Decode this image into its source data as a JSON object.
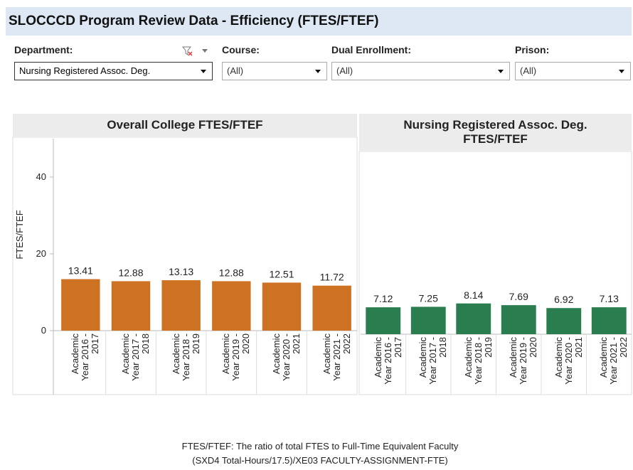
{
  "header": {
    "title": "SLOCCCD Program Review Data - Efficiency (FTES/FTEF)"
  },
  "filters": [
    {
      "label": "Department:",
      "value": "Nursing Registered Assoc. Deg."
    },
    {
      "label": "Course:",
      "value": "(All)"
    },
    {
      "label": "Dual Enrollment:",
      "value": "(All)"
    },
    {
      "label": "Prison:",
      "value": "(All)"
    }
  ],
  "chart_data": [
    {
      "type": "bar",
      "title": "Overall College FTES/FTEF",
      "y_label": "FTES/FTEF",
      "categories": [
        "Academic Year 2016 - 2017",
        "Academic Year 2017 - 2018",
        "Academic Year 2018 - 2019",
        "Academic Year 2019 - 2020",
        "Academic Year 2020 - 2021",
        "Academic Year 2021 - 2022"
      ],
      "values": [
        13.41,
        12.88,
        13.13,
        12.88,
        12.51,
        11.72
      ],
      "color": "#cd7223",
      "ylim": [
        0,
        50
      ],
      "yticks": [
        0,
        20,
        40
      ]
    },
    {
      "type": "bar",
      "title": "Nursing Registered Assoc. Deg. FTES/FTEF",
      "categories": [
        "Academic Year 2016 - 2017",
        "Academic Year 2017 - 2018",
        "Academic Year 2018 - 2019",
        "Academic Year 2019 - 2020",
        "Academic Year 2020 - 2021",
        "Academic Year 2021 - 2022"
      ],
      "values": [
        7.12,
        7.25,
        8.14,
        7.69,
        6.92,
        7.13
      ],
      "color": "#2a7d4e",
      "ylim": [
        0,
        48
      ]
    }
  ],
  "footnote": [
    "FTES/FTEF: The ratio of total FTES to Full-Time Equivalent Faculty",
    "(SXD4 Total-Hours/17.5)/XE03 FACULTY-ASSIGNMENT-FTE)"
  ]
}
